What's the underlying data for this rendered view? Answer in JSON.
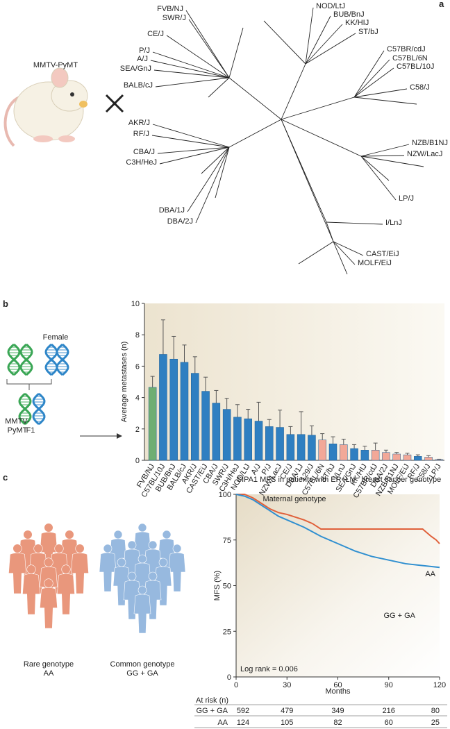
{
  "panels": {
    "a": {
      "letter": "a",
      "mouse_label": "MMTV-PyMT",
      "strains": [
        "FVB/NJ",
        "SWR/J",
        "CE/J",
        "P/J",
        "A/J",
        "SEA/GnJ",
        "BALB/cJ",
        "AKR/J",
        "RF/J",
        "CBA/J",
        "C3H/HeJ",
        "DBA/1J",
        "DBA/2J",
        "NOD/LtJ",
        "BUB/BnJ",
        "KK/HIJ",
        "ST/bJ",
        "C57BR/cdJ",
        "C57BL/6N",
        "C57BL/10J",
        "C58/J",
        "NZB/B1NJ",
        "NZW/LacJ",
        "LP/J",
        "I/LnJ",
        "CAST/EiJ",
        "MOLF/EiJ"
      ]
    },
    "b": {
      "letter": "b",
      "male_label": [
        "MMTV-",
        "PyMT"
      ],
      "female_label": "Female",
      "offspring_label": "F1"
    },
    "c": {
      "letter": "c",
      "rare_label": [
        "Rare genotype",
        "AA"
      ],
      "common_label": [
        "Common genotype",
        "GG + GA"
      ],
      "at_risk": {
        "header": "At risk (n)",
        "rows": [
          [
            "GG + GA",
            592,
            479,
            349,
            216,
            80
          ],
          [
            "AA",
            124,
            105,
            82,
            60,
            25
          ]
        ]
      }
    }
  },
  "chart_data": [
    {
      "type": "bar",
      "x_label": "Maternal genotype",
      "y_label": "Average metastases (n)",
      "categories": [
        "FVB/NJ",
        "C57BL/10J",
        "BUB/BnJ",
        "BALB/cJ",
        "AKR/J",
        "CAST/EiJ",
        "CBA/J",
        "SWR/J",
        "C3H/HeJ",
        "NOD/LtJ",
        "A/J",
        "P/J",
        "NZW/LacJ",
        "CE/J",
        "DBA/1J",
        "129/J",
        "C57BL/6N",
        "ST/bJ",
        "I/LnJ",
        "SEA/GnJ",
        "KK/HIJ",
        "C57BR/cdJ",
        "DBA/2J",
        "NZB/B1NJ",
        "MOLF/EiJ",
        "RF/J",
        "C58/J",
        "LP/J"
      ],
      "values": [
        4.65,
        6.75,
        6.45,
        6.25,
        5.55,
        4.4,
        3.65,
        3.25,
        2.75,
        2.65,
        2.5,
        2.15,
        2.1,
        1.65,
        1.65,
        1.6,
        1.3,
        1.05,
        1.0,
        0.75,
        0.65,
        0.65,
        0.5,
        0.4,
        0.35,
        0.25,
        0.2,
        0.05
      ],
      "errors": [
        0.7,
        2.2,
        1.45,
        1.1,
        1.05,
        0.9,
        0.8,
        0.7,
        0.8,
        0.6,
        1.2,
        0.45,
        1.1,
        0.5,
        1.45,
        0.6,
        0.4,
        0.45,
        0.35,
        0.25,
        0.25,
        0.45,
        0.15,
        0.1,
        0.1,
        0.1,
        0.1,
        0.02
      ],
      "colors": [
        "#6fae72",
        "#2f7fc1",
        "#2f7fc1",
        "#2f7fc1",
        "#2f7fc1",
        "#2f7fc1",
        "#2f7fc1",
        "#2f7fc1",
        "#2f7fc1",
        "#2f7fc1",
        "#2f7fc1",
        "#2f7fc1",
        "#2f7fc1",
        "#2f7fc1",
        "#2f7fc1",
        "#2f7fc1",
        "#f2a898",
        "#2f7fc1",
        "#f2a898",
        "#2f7fc1",
        "#2f7fc1",
        "#f2a898",
        "#f2a898",
        "#f2a898",
        "#f2a898",
        "#2f7fc1",
        "#f2a898",
        "#f2a898"
      ],
      "ylim": [
        0,
        10
      ],
      "yticks": [
        0,
        2,
        4,
        6,
        8,
        10
      ]
    },
    {
      "type": "line",
      "title": "SIPA1 MFS in patients with ER⁺LN⁻ breast cancer genotype",
      "x_label": "Months",
      "y_label": "MFS (%)",
      "annotation": "Log rank = 0.006",
      "series": [
        {
          "name": "AA",
          "color": "#e0603a",
          "x": [
            0,
            5,
            10,
            15,
            20,
            25,
            30,
            40,
            45,
            50,
            60,
            70,
            80,
            90,
            100,
            110,
            115,
            118,
            120
          ],
          "values": [
            100,
            100,
            98,
            95,
            92,
            90,
            89,
            86,
            84,
            81,
            81,
            81,
            81,
            81,
            81,
            81,
            77,
            75,
            73
          ]
        },
        {
          "name": "GG + GA",
          "color": "#2f8fd0",
          "x": [
            0,
            5,
            10,
            15,
            20,
            25,
            30,
            40,
            50,
            60,
            70,
            80,
            90,
            100,
            110,
            120
          ],
          "values": [
            100,
            99,
            97,
            94,
            91,
            88,
            86,
            82,
            77,
            73,
            69,
            66,
            64,
            62,
            61,
            60
          ]
        }
      ],
      "xlim": [
        0,
        120
      ],
      "xticks": [
        0,
        30,
        60,
        90,
        120
      ],
      "ylim": [
        0,
        100
      ],
      "yticks": [
        0,
        25,
        50,
        75,
        100
      ]
    }
  ]
}
